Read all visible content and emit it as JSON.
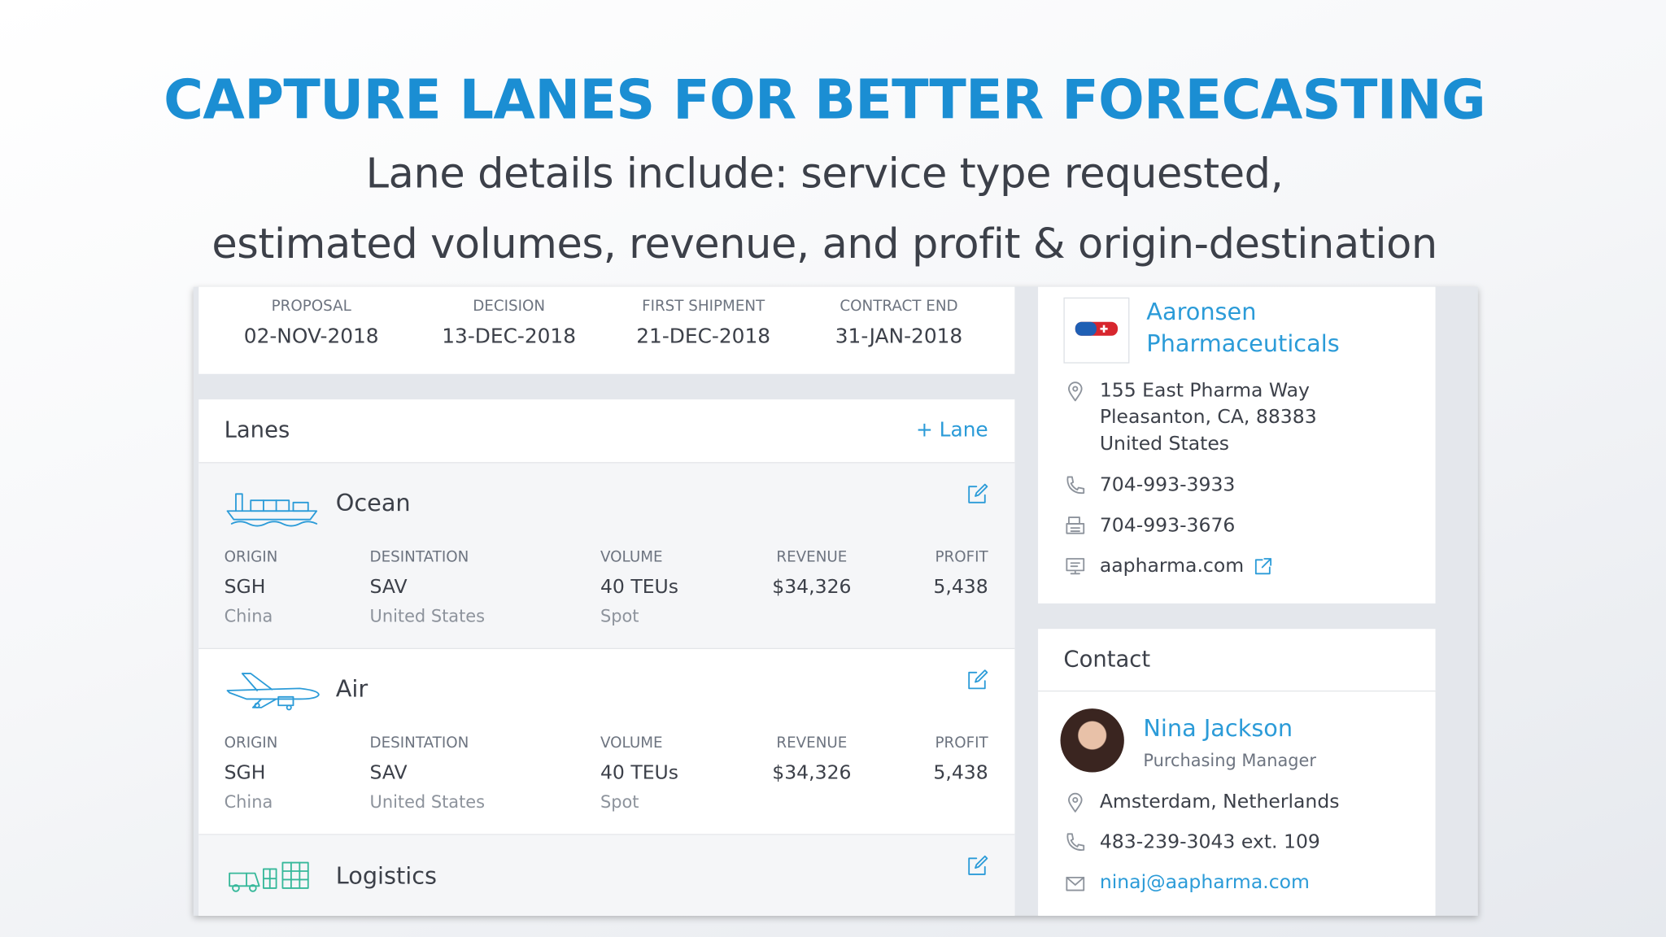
{
  "header": {
    "title": "CAPTURE LANES FOR BETTER FORECASTING",
    "subtitle_lines": [
      "Lane details include: service type requested,",
      "estimated volumes, revenue, and profit & origin-destination"
    ]
  },
  "milestones": [
    {
      "label": "PROPOSAL",
      "date": "02-NOV-2018"
    },
    {
      "label": "DECISION",
      "date": "13-DEC-2018"
    },
    {
      "label": "FIRST SHIPMENT",
      "date": "21-DEC-2018"
    },
    {
      "label": "CONTRACT END",
      "date": "31-JAN-2018"
    }
  ],
  "lanes": {
    "title": "Lanes",
    "add_button": "+ Lane",
    "items": [
      {
        "mode": "Ocean",
        "columns": [
          {
            "label": "ORIGIN",
            "value": "SGH",
            "detail": "China"
          },
          {
            "label": "DESINTATION",
            "value": "SAV",
            "detail": "United States"
          },
          {
            "label": "VOLUME",
            "value": "40 TEUs",
            "detail": "Spot"
          },
          {
            "label": "REVENUE",
            "value": "$34,326"
          },
          {
            "label": "PROFIT",
            "value": "5,438"
          }
        ]
      },
      {
        "mode": "Air",
        "columns": [
          {
            "label": "ORIGIN",
            "value": "SGH",
            "detail": "China"
          },
          {
            "label": "DESINTATION",
            "value": "SAV",
            "detail": "United States"
          },
          {
            "label": "VOLUME",
            "value": "40 TEUs",
            "detail": "Spot"
          },
          {
            "label": "REVENUE",
            "value": "$34,326"
          },
          {
            "label": "PROFIT",
            "value": "5,438"
          }
        ]
      },
      {
        "mode": "Logistics"
      }
    ]
  },
  "company": {
    "name_lines": [
      "Aaronsen",
      "Pharmaceuticals"
    ],
    "address_lines": [
      "155 East Pharma Way",
      "Pleasanton, CA, 88383",
      "United States"
    ],
    "phone": "704-993-3933",
    "fax": "704-993-3676",
    "website": "aapharma.com"
  },
  "contact": {
    "title": "Contact",
    "name": "Nina Jackson",
    "role": "Purchasing Manager",
    "location": "Amsterdam, Netherlands",
    "phone": "483-239-3043 ext. 109",
    "email": "ninaj@aapharma.com"
  }
}
